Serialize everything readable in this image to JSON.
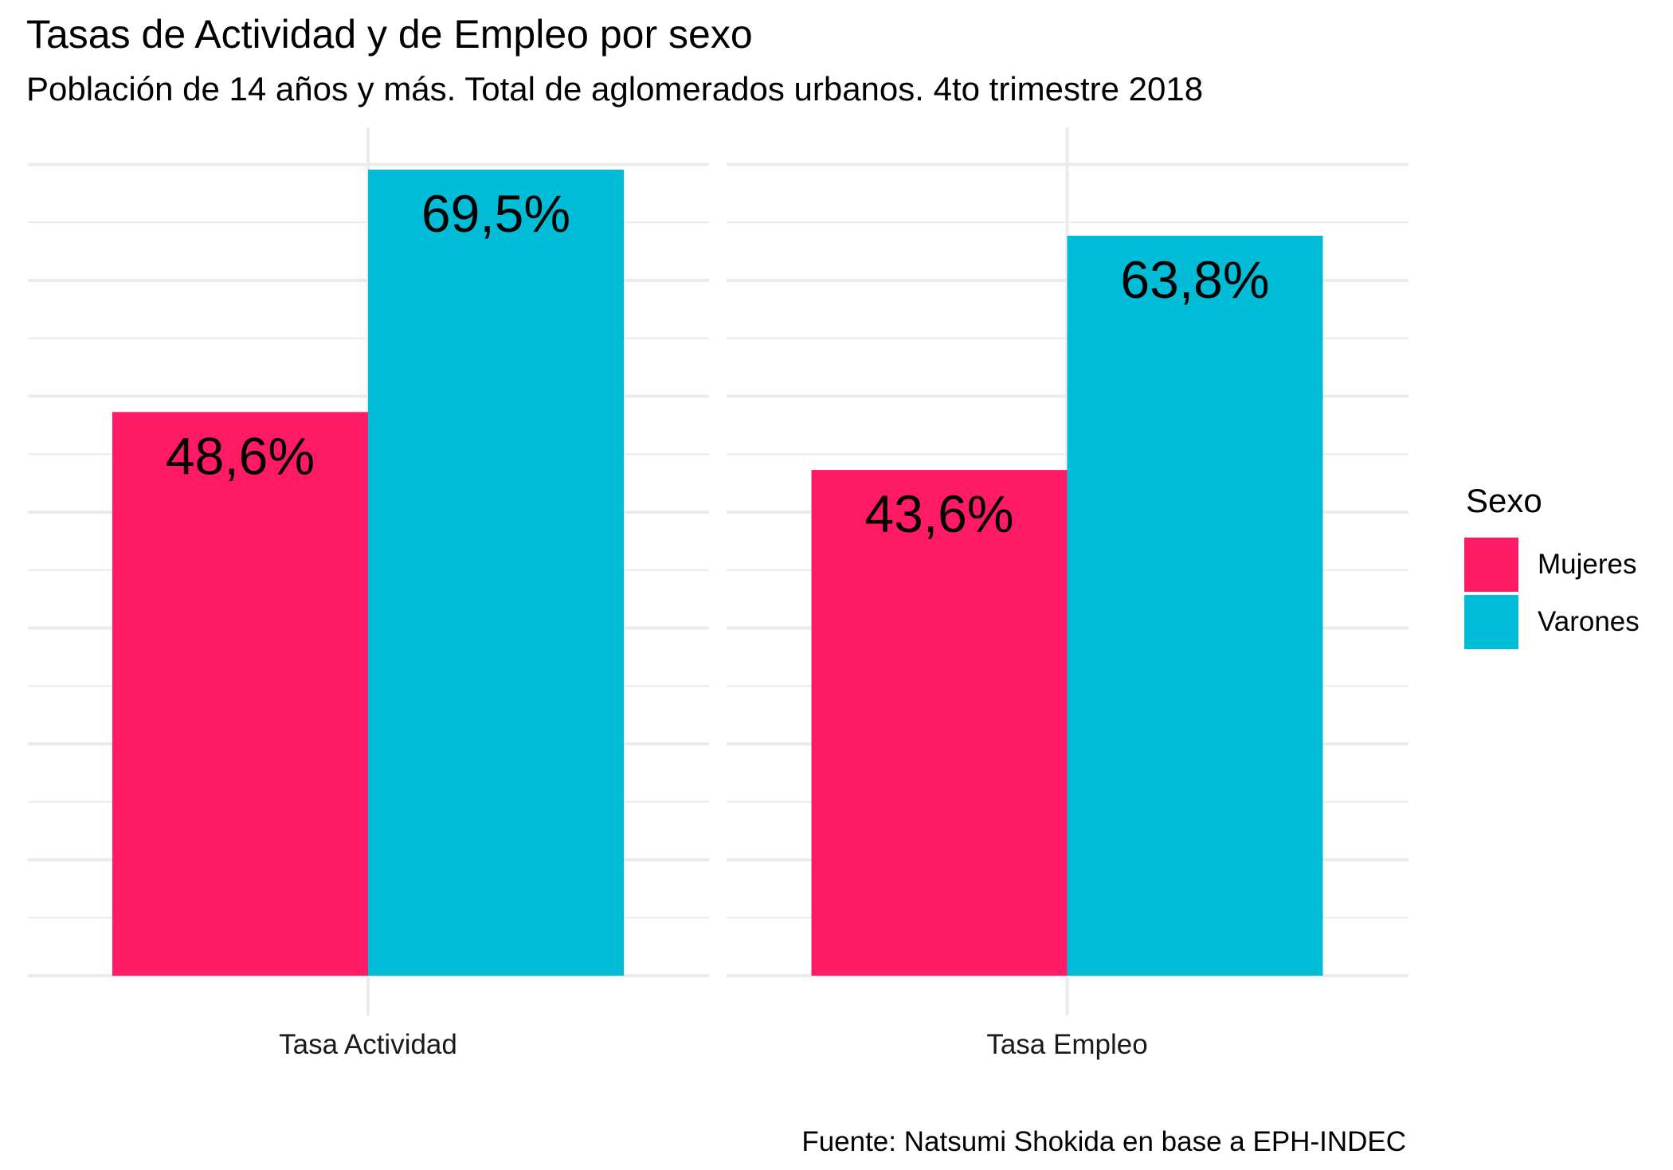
{
  "chart_data": {
    "type": "bar",
    "title": "Tasas de Actividad y de Empleo por sexo",
    "subtitle": "Población de 14 años y más. Total de aglomerados urbanos. 4to trimestre 2018",
    "caption": "Fuente: Natsumi Shokida en base a EPH-INDEC",
    "legend_title": "Sexo",
    "legend_position": "right",
    "grid": true,
    "facets": [
      {
        "category": "Tasa Actividad",
        "series": [
          {
            "name": "Mujeres",
            "value": 48.6,
            "label": "48,6%"
          },
          {
            "name": "Varones",
            "value": 69.5,
            "label": "69,5%"
          }
        ]
      },
      {
        "category": "Tasa Empleo",
        "series": [
          {
            "name": "Mujeres",
            "value": 43.6,
            "label": "43,6%"
          },
          {
            "name": "Varones",
            "value": 63.8,
            "label": "63,8%"
          }
        ]
      }
    ],
    "legend": [
      {
        "name": "Mujeres",
        "color": "#ff1a66"
      },
      {
        "name": "Varones",
        "color": "#00bcd6"
      }
    ],
    "ylim": [
      0,
      70
    ]
  }
}
